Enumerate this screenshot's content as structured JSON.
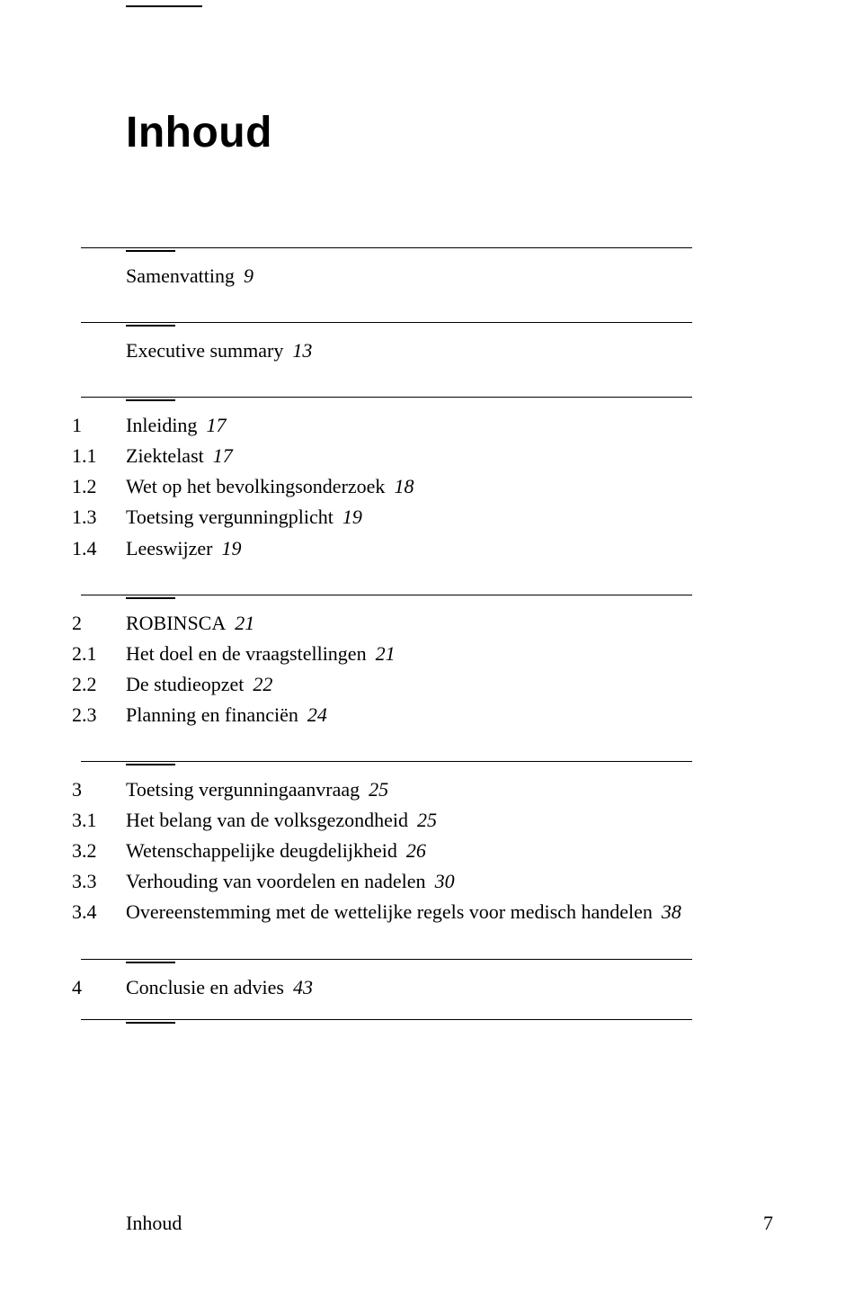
{
  "title": "Inhoud",
  "sections": [
    {
      "rows": [
        {
          "num": "",
          "label": "Samenvatting",
          "page": "9"
        }
      ]
    },
    {
      "rows": [
        {
          "num": "",
          "label": "Executive summary",
          "page": "13"
        }
      ]
    },
    {
      "rows": [
        {
          "num": "1",
          "label": "Inleiding",
          "page": "17"
        },
        {
          "num": "1.1",
          "label": "Ziektelast",
          "page": "17"
        },
        {
          "num": "1.2",
          "label": "Wet op het bevolkingsonderzoek",
          "page": "18"
        },
        {
          "num": "1.3",
          "label": "Toetsing vergunningplicht",
          "page": "19"
        },
        {
          "num": "1.4",
          "label": "Leeswijzer",
          "page": "19"
        }
      ]
    },
    {
      "rows": [
        {
          "num": "2",
          "label": "ROBINSCA",
          "page": "21"
        },
        {
          "num": "2.1",
          "label": "Het doel en de vraagstellingen",
          "page": "21"
        },
        {
          "num": "2.2",
          "label": "De studieopzet",
          "page": "22"
        },
        {
          "num": "2.3",
          "label": "Planning en financiën",
          "page": "24"
        }
      ]
    },
    {
      "rows": [
        {
          "num": "3",
          "label": "Toetsing vergunningaanvraag",
          "page": "25"
        },
        {
          "num": "3.1",
          "label": "Het belang van de volksgezondheid",
          "page": "25"
        },
        {
          "num": "3.2",
          "label": "Wetenschappelijke deugdelijkheid",
          "page": "26"
        },
        {
          "num": "3.3",
          "label": "Verhouding van voordelen en nadelen",
          "page": "30"
        },
        {
          "num": "3.4",
          "label": "Overeenstemming met de wettelijke regels voor medisch handelen",
          "page": "38"
        }
      ]
    },
    {
      "rows": [
        {
          "num": "4",
          "label": "Conclusie en advies",
          "page": "43"
        }
      ]
    }
  ],
  "footer": {
    "label": "Inhoud",
    "page": "7"
  }
}
